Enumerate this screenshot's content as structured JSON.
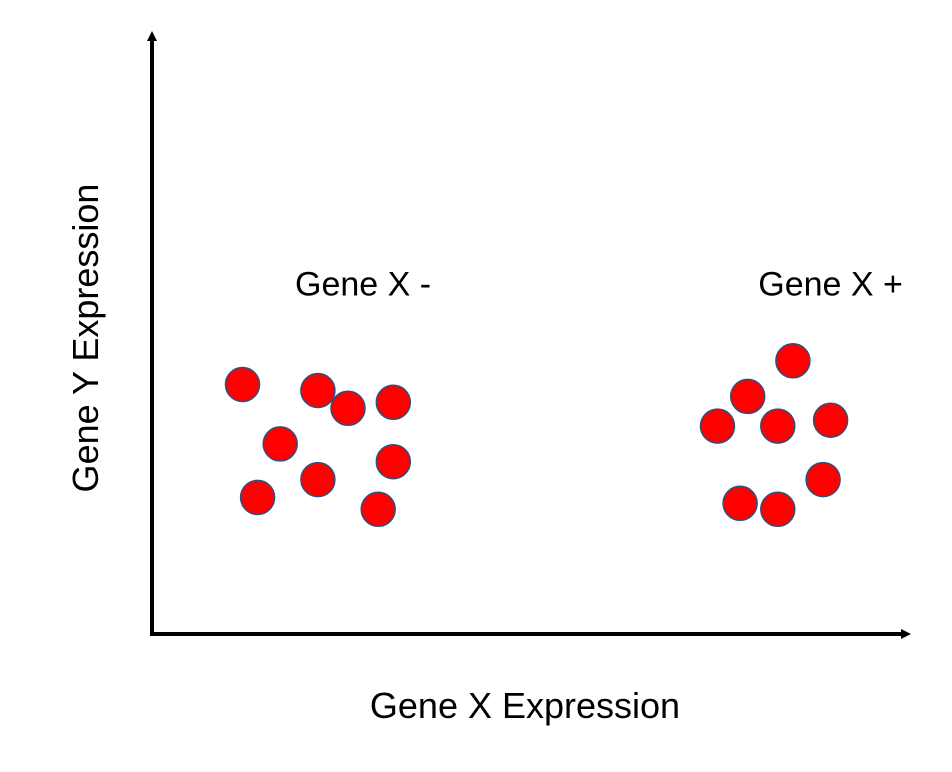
{
  "chart_data": {
    "type": "scatter",
    "title": "",
    "xlabel": "Gene X Expression",
    "ylabel": "Gene Y Expression",
    "xlim": [
      0,
      10
    ],
    "ylim": [
      0,
      10
    ],
    "grid": false,
    "ticks": false,
    "annotations": [
      {
        "text": "Gene X -",
        "x": 2.8,
        "y": 5.7
      },
      {
        "text": "Gene X +",
        "x": 9.0,
        "y": 5.7
      }
    ],
    "series": [
      {
        "color": "#ff0000",
        "edge_color": "#2f4f7f",
        "points": [
          {
            "x": 1.2,
            "y": 4.2
          },
          {
            "x": 2.2,
            "y": 4.1
          },
          {
            "x": 2.6,
            "y": 3.8
          },
          {
            "x": 3.2,
            "y": 3.9
          },
          {
            "x": 1.7,
            "y": 3.2
          },
          {
            "x": 2.2,
            "y": 2.6
          },
          {
            "x": 3.2,
            "y": 2.9
          },
          {
            "x": 1.4,
            "y": 2.3
          },
          {
            "x": 3.0,
            "y": 2.1
          }
        ]
      },
      {
        "color": "#ff0000",
        "edge_color": "#2f4f7f",
        "points": [
          {
            "x": 8.5,
            "y": 4.6
          },
          {
            "x": 7.9,
            "y": 4.0
          },
          {
            "x": 7.5,
            "y": 3.5
          },
          {
            "x": 8.3,
            "y": 3.5
          },
          {
            "x": 9.0,
            "y": 3.6
          },
          {
            "x": 8.9,
            "y": 2.6
          },
          {
            "x": 7.8,
            "y": 2.2
          },
          {
            "x": 8.3,
            "y": 2.1
          }
        ]
      }
    ]
  }
}
